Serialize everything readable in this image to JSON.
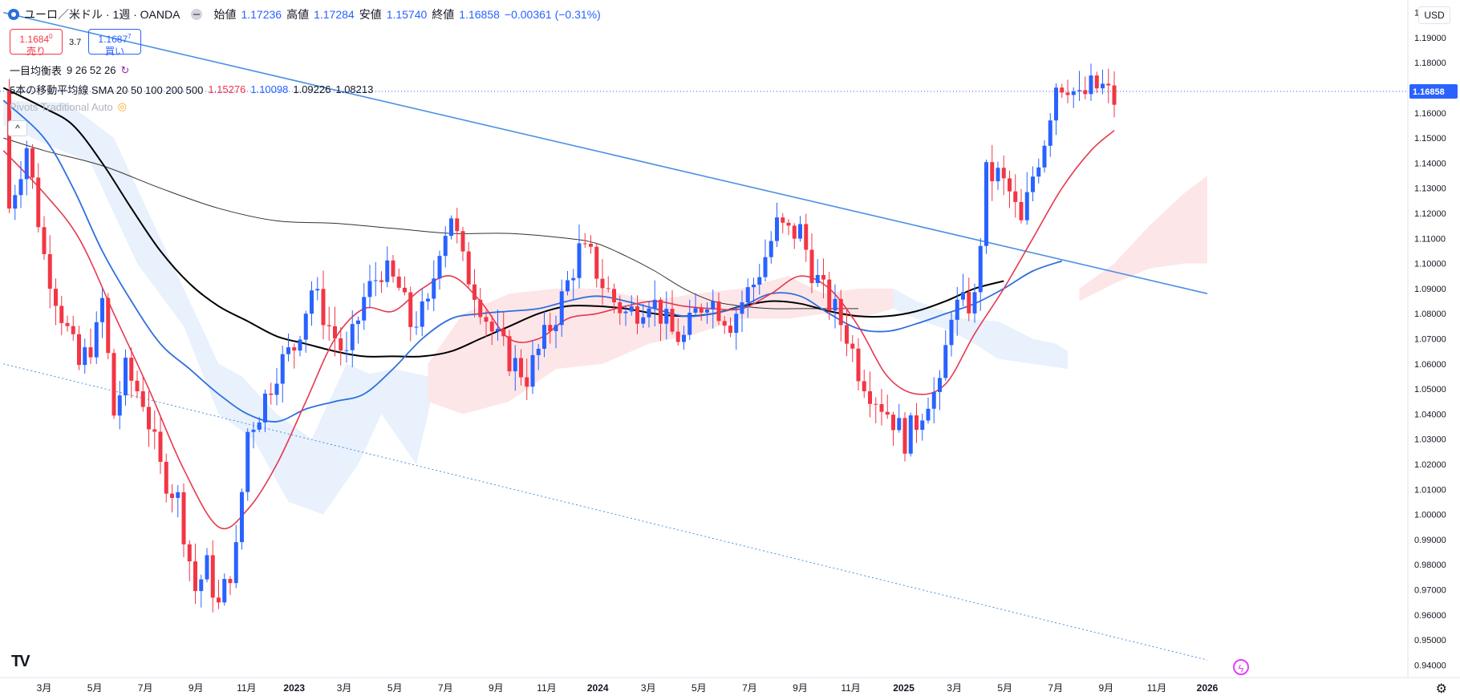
{
  "header": {
    "symbol": "ユーロ／米ドル · 1週 · OANDA",
    "open_label": "始値",
    "open": "1.17236",
    "high_label": "高値",
    "high": "1.17284",
    "low_label": "安値",
    "low": "1.15740",
    "close_label": "終値",
    "close": "1.16858",
    "change": "−0.00361 (−0.31%)"
  },
  "trade": {
    "sell_price": "1.1684",
    "sell_sup": "0",
    "sell_label": "売り",
    "spread": "3.7",
    "buy_price": "1.1687",
    "buy_sup": "7",
    "buy_label": "買い"
  },
  "indicators": {
    "ichimoku_label": "一目均衡表",
    "ichimoku_params": "9 26 52 26",
    "sma_label": "5本の移動平均線 SMA 20 50 100 200 500",
    "sma_values": [
      "1.15276",
      "1.10098",
      "1.09226",
      "1.08213"
    ],
    "pivots_label": "Pivots Traditional Auto"
  },
  "currency_button": "USD",
  "price_axis": [
    "1.20000",
    "1.19000",
    "1.18000",
    "1.17000",
    "1.16000",
    "1.15000",
    "1.14000",
    "1.13000",
    "1.12000",
    "1.11000",
    "1.10000",
    "1.09000",
    "1.08000",
    "1.07000",
    "1.06000",
    "1.05000",
    "1.04000",
    "1.03000",
    "1.02000",
    "1.01000",
    "1.00000",
    "0.99000",
    "0.98000",
    "0.97000",
    "0.96000",
    "0.95000",
    "0.94000"
  ],
  "time_axis": [
    {
      "label": "3月",
      "w": 0
    },
    {
      "label": "5月",
      "w": 8.7
    },
    {
      "label": "7月",
      "w": 17.4
    },
    {
      "label": "9月",
      "w": 26.1
    },
    {
      "label": "11月",
      "w": 34.8
    },
    {
      "label": "2023",
      "w": 43
    },
    {
      "label": "3月",
      "w": 51.6
    },
    {
      "label": "5月",
      "w": 60.3
    },
    {
      "label": "7月",
      "w": 69
    },
    {
      "label": "9月",
      "w": 77.7
    },
    {
      "label": "11月",
      "w": 86.4
    },
    {
      "label": "2024",
      "w": 95.2
    },
    {
      "label": "3月",
      "w": 103.9
    },
    {
      "label": "5月",
      "w": 112.6
    },
    {
      "label": "7月",
      "w": 121.3
    },
    {
      "label": "9月",
      "w": 130
    },
    {
      "label": "11月",
      "w": 138.7
    },
    {
      "label": "2025",
      "w": 147.8
    },
    {
      "label": "3月",
      "w": 156.5
    },
    {
      "label": "5月",
      "w": 165.2
    },
    {
      "label": "7月",
      "w": 173.9
    },
    {
      "label": "9月",
      "w": 182.6
    },
    {
      "label": "11月",
      "w": 191.3
    },
    {
      "label": "2026",
      "w": 200
    }
  ],
  "last_price": "1.16858",
  "colors": {
    "up": "#2962ff",
    "down": "#f23645",
    "trend": "#4a90e2",
    "sma20": "#e53950",
    "sma50": "#2f6fde",
    "sma100": "#000000",
    "sma200": "#333333",
    "cloud_bull": "#e8f1fc",
    "cloud_bear": "#fde6e8"
  },
  "chart_data": {
    "type": "candlestick",
    "symbol": "EURUSD",
    "interval": "1W",
    "ylim": [
      0.935,
      1.205
    ],
    "grid": false,
    "note_x": "w = week index, 0 = first week of March 2022",
    "candles_anchor": [
      [
        -6,
        1.122
      ],
      [
        -3,
        1.147
      ],
      [
        0,
        1.103
      ],
      [
        3,
        1.08
      ],
      [
        6,
        1.059
      ],
      [
        9,
        1.072
      ],
      [
        10,
        1.085
      ],
      [
        12,
        1.04
      ],
      [
        14,
        1.057
      ],
      [
        17,
        1.046
      ],
      [
        20,
        1.018
      ],
      [
        23,
        1.006
      ],
      [
        26,
        0.97
      ],
      [
        28,
        0.979
      ],
      [
        30,
        0.963
      ],
      [
        33,
        0.985
      ],
      [
        35,
        1.033
      ],
      [
        37,
        1.041
      ],
      [
        40,
        1.058
      ],
      [
        43,
        1.067
      ],
      [
        46,
        1.09
      ],
      [
        49,
        1.075
      ],
      [
        52,
        1.062
      ],
      [
        55,
        1.086
      ],
      [
        58,
        1.098
      ],
      [
        61,
        1.09
      ],
      [
        63,
        1.076
      ],
      [
        66,
        1.082
      ],
      [
        68,
        1.108
      ],
      [
        70,
        1.12
      ],
      [
        72,
        1.1
      ],
      [
        74,
        1.09
      ],
      [
        77,
        1.073
      ],
      [
        80,
        1.062
      ],
      [
        83,
        1.055
      ],
      [
        86,
        1.07
      ],
      [
        88,
        1.08
      ],
      [
        90,
        1.092
      ],
      [
        92,
        1.105
      ],
      [
        94,
        1.102
      ],
      [
        96,
        1.092
      ],
      [
        98,
        1.085
      ],
      [
        100,
        1.08
      ],
      [
        102,
        1.082
      ],
      [
        104,
        1.087
      ],
      [
        106,
        1.08
      ],
      [
        108,
        1.072
      ],
      [
        110,
        1.07
      ],
      [
        112,
        1.08
      ],
      [
        114,
        1.087
      ],
      [
        116,
        1.082
      ],
      [
        118,
        1.077
      ],
      [
        120,
        1.085
      ],
      [
        122,
        1.092
      ],
      [
        124,
        1.103
      ],
      [
        126,
        1.115
      ],
      [
        128,
        1.112
      ],
      [
        130,
        1.113
      ],
      [
        132,
        1.098
      ],
      [
        134,
        1.088
      ],
      [
        136,
        1.081
      ],
      [
        138,
        1.072
      ],
      [
        140,
        1.058
      ],
      [
        142,
        1.05
      ],
      [
        144,
        1.044
      ],
      [
        146,
        1.038
      ],
      [
        148,
        1.03
      ],
      [
        150,
        1.037
      ],
      [
        152,
        1.047
      ],
      [
        154,
        1.049
      ],
      [
        156,
        1.082
      ],
      [
        158,
        1.083
      ],
      [
        160,
        1.085
      ],
      [
        162,
        1.135
      ],
      [
        164,
        1.135
      ],
      [
        166,
        1.128
      ],
      [
        168,
        1.115
      ],
      [
        170,
        1.135
      ],
      [
        172,
        1.15
      ],
      [
        174,
        1.172
      ],
      [
        176,
        1.172
      ],
      [
        178,
        1.165
      ],
      [
        180,
        1.17
      ],
      [
        182,
        1.17
      ],
      [
        184,
        1.165
      ],
      [
        184.5,
        1.1686
      ]
    ],
    "sma20": [
      [
        -7,
        1.145
      ],
      [
        0,
        1.128
      ],
      [
        6,
        1.11
      ],
      [
        12,
        1.08
      ],
      [
        18,
        1.05
      ],
      [
        24,
        1.018
      ],
      [
        30,
        0.995
      ],
      [
        35,
        1.002
      ],
      [
        40,
        1.02
      ],
      [
        45,
        1.045
      ],
      [
        50,
        1.07
      ],
      [
        55,
        1.082
      ],
      [
        60,
        1.081
      ],
      [
        65,
        1.09
      ],
      [
        70,
        1.095
      ],
      [
        75,
        1.085
      ],
      [
        80,
        1.07
      ],
      [
        85,
        1.07
      ],
      [
        90,
        1.078
      ],
      [
        95,
        1.08
      ],
      [
        100,
        1.083
      ],
      [
        105,
        1.085
      ],
      [
        110,
        1.083
      ],
      [
        115,
        1.082
      ],
      [
        120,
        1.082
      ],
      [
        125,
        1.088
      ],
      [
        130,
        1.095
      ],
      [
        135,
        1.09
      ],
      [
        140,
        1.075
      ],
      [
        145,
        1.055
      ],
      [
        150,
        1.048
      ],
      [
        155,
        1.052
      ],
      [
        160,
        1.072
      ],
      [
        165,
        1.09
      ],
      [
        170,
        1.11
      ],
      [
        175,
        1.13
      ],
      [
        180,
        1.145
      ],
      [
        184,
        1.153
      ]
    ],
    "sma50": [
      [
        -7,
        1.165
      ],
      [
        0,
        1.15
      ],
      [
        5,
        1.13
      ],
      [
        10,
        1.105
      ],
      [
        15,
        1.085
      ],
      [
        20,
        1.068
      ],
      [
        25,
        1.058
      ],
      [
        30,
        1.048
      ],
      [
        35,
        1.04
      ],
      [
        40,
        1.037
      ],
      [
        45,
        1.042
      ],
      [
        50,
        1.045
      ],
      [
        55,
        1.048
      ],
      [
        60,
        1.058
      ],
      [
        65,
        1.07
      ],
      [
        70,
        1.078
      ],
      [
        75,
        1.08
      ],
      [
        80,
        1.081
      ],
      [
        85,
        1.082
      ],
      [
        90,
        1.085
      ],
      [
        95,
        1.087
      ],
      [
        100,
        1.085
      ],
      [
        105,
        1.082
      ],
      [
        110,
        1.079
      ],
      [
        115,
        1.08
      ],
      [
        120,
        1.083
      ],
      [
        125,
        1.088
      ],
      [
        130,
        1.087
      ],
      [
        135,
        1.08
      ],
      [
        140,
        1.074
      ],
      [
        145,
        1.073
      ],
      [
        150,
        1.076
      ],
      [
        155,
        1.08
      ],
      [
        160,
        1.084
      ],
      [
        165,
        1.09
      ],
      [
        170,
        1.097
      ],
      [
        175,
        1.101
      ]
    ],
    "sma100": [
      [
        -7,
        1.17
      ],
      [
        0,
        1.162
      ],
      [
        5,
        1.155
      ],
      [
        10,
        1.14
      ],
      [
        15,
        1.122
      ],
      [
        20,
        1.105
      ],
      [
        25,
        1.092
      ],
      [
        30,
        1.083
      ],
      [
        35,
        1.077
      ],
      [
        40,
        1.071
      ],
      [
        45,
        1.068
      ],
      [
        50,
        1.065
      ],
      [
        55,
        1.063
      ],
      [
        60,
        1.063
      ],
      [
        65,
        1.063
      ],
      [
        70,
        1.065
      ],
      [
        75,
        1.07
      ],
      [
        80,
        1.075
      ],
      [
        85,
        1.08
      ],
      [
        90,
        1.083
      ],
      [
        95,
        1.083
      ],
      [
        100,
        1.082
      ],
      [
        105,
        1.08
      ],
      [
        110,
        1.079
      ],
      [
        115,
        1.08
      ],
      [
        120,
        1.083
      ],
      [
        125,
        1.085
      ],
      [
        130,
        1.084
      ],
      [
        135,
        1.081
      ],
      [
        140,
        1.079
      ],
      [
        145,
        1.079
      ],
      [
        150,
        1.081
      ],
      [
        155,
        1.085
      ],
      [
        160,
        1.09
      ],
      [
        165,
        1.093
      ]
    ],
    "sma200": [
      [
        -7,
        1.15
      ],
      [
        0,
        1.145
      ],
      [
        10,
        1.139
      ],
      [
        20,
        1.13
      ],
      [
        30,
        1.122
      ],
      [
        40,
        1.117
      ],
      [
        50,
        1.116
      ],
      [
        60,
        1.114
      ],
      [
        70,
        1.112
      ],
      [
        80,
        1.112
      ],
      [
        90,
        1.11
      ],
      [
        95,
        1.108
      ],
      [
        100,
        1.103
      ],
      [
        105,
        1.097
      ],
      [
        110,
        1.09
      ],
      [
        115,
        1.085
      ],
      [
        120,
        1.083
      ],
      [
        125,
        1.082
      ],
      [
        130,
        1.082
      ],
      [
        135,
        1.082
      ],
      [
        140,
        1.082
      ]
    ],
    "trend_upper": [
      [
        -7,
        1.2
      ],
      [
        200,
        1.088
      ]
    ],
    "trend_lower": [
      [
        -7,
        1.06
      ],
      [
        200,
        0.942
      ]
    ],
    "cloud_bull": [
      [
        [
          -7,
          1.165
        ],
        [
          4,
          1.164
        ],
        [
          12,
          1.15
        ],
        [
          20,
          1.11
        ],
        [
          26,
          1.08
        ],
        [
          30,
          1.06
        ],
        [
          34,
          1.055
        ],
        [
          40,
          1.04
        ],
        [
          46,
          1.03
        ],
        [
          52,
          1.06
        ],
        [
          56,
          1.056
        ],
        [
          60,
          1.058
        ],
        [
          66,
          1.055
        ],
        [
          68,
          1.06
        ],
        [
          64,
          1.02
        ],
        [
          58,
          1.04
        ],
        [
          54,
          1.02
        ],
        [
          48,
          1.0
        ],
        [
          42,
          1.005
        ],
        [
          36,
          1.03
        ],
        [
          30,
          1.04
        ],
        [
          24,
          1.075
        ],
        [
          16,
          1.1
        ],
        [
          8,
          1.14
        ],
        [
          -7,
          1.155
        ]
      ],
      [
        [
          146,
          1.09
        ],
        [
          150,
          1.085
        ],
        [
          156,
          1.08
        ],
        [
          158,
          1.078
        ],
        [
          164,
          1.077
        ],
        [
          170,
          1.07
        ],
        [
          174,
          1.068
        ],
        [
          176,
          1.065
        ],
        [
          176,
          1.058
        ],
        [
          170,
          1.06
        ],
        [
          164,
          1.062
        ],
        [
          160,
          1.068
        ],
        [
          156,
          1.073
        ],
        [
          150,
          1.078
        ],
        [
          146,
          1.082
        ]
      ]
    ],
    "cloud_bear": [
      [
        [
          66,
          1.06
        ],
        [
          72,
          1.08
        ],
        [
          80,
          1.088
        ],
        [
          88,
          1.09
        ],
        [
          96,
          1.09
        ],
        [
          104,
          1.085
        ],
        [
          112,
          1.088
        ],
        [
          120,
          1.09
        ],
        [
          128,
          1.095
        ],
        [
          134,
          1.088
        ],
        [
          140,
          1.09
        ],
        [
          146,
          1.09
        ],
        [
          146,
          1.082
        ],
        [
          140,
          1.078
        ],
        [
          134,
          1.08
        ],
        [
          128,
          1.078
        ],
        [
          120,
          1.078
        ],
        [
          112,
          1.072
        ],
        [
          104,
          1.068
        ],
        [
          96,
          1.06
        ],
        [
          88,
          1.058
        ],
        [
          80,
          1.045
        ],
        [
          72,
          1.04
        ],
        [
          66,
          1.045
        ]
      ],
      [
        [
          178,
          1.09
        ],
        [
          184,
          1.1
        ],
        [
          190,
          1.115
        ],
        [
          196,
          1.128
        ],
        [
          200,
          1.135
        ],
        [
          200,
          1.1
        ],
        [
          196,
          1.1
        ],
        [
          190,
          1.098
        ],
        [
          184,
          1.092
        ],
        [
          178,
          1.085
        ]
      ]
    ]
  }
}
